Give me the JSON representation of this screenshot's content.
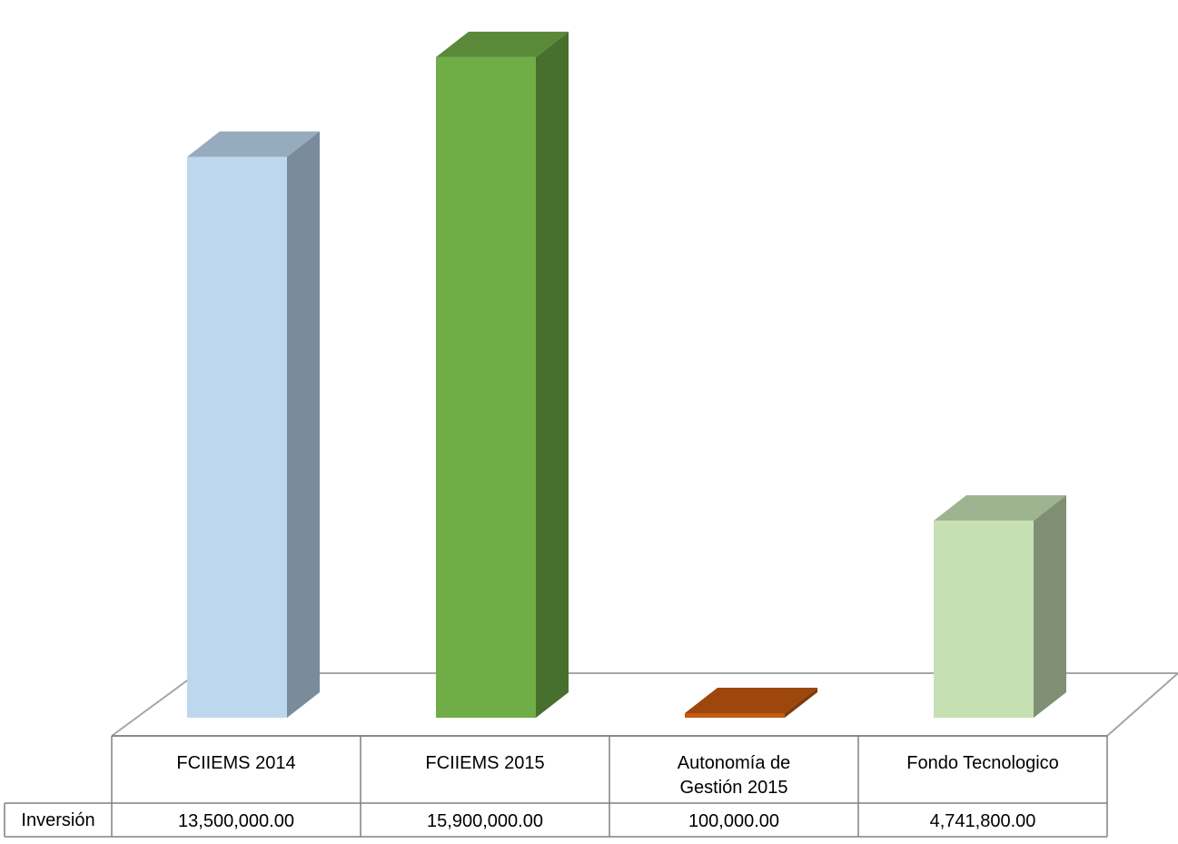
{
  "chart_data": {
    "type": "bar",
    "style": "3d-column-with-data-table",
    "title": "",
    "xlabel": "",
    "ylabel": "",
    "ylim": [
      0,
      16400000
    ],
    "grid": false,
    "legend": "none",
    "categories": [
      [
        "FCIIEMS 2014"
      ],
      [
        "FCIIEMS 2015"
      ],
      [
        "Autonomía de",
        "Gestión 2015"
      ],
      [
        "Fondo Tecnologico"
      ]
    ],
    "series": [
      {
        "name": "Inversión",
        "values": [
          13500000,
          15900000,
          100000,
          4741800
        ],
        "value_labels": [
          "13,500,000.00",
          "15,900,000.00",
          "100,000.00",
          "4,741,800.00"
        ]
      }
    ],
    "colors": [
      {
        "front": "#BDD7EE",
        "top": "#97ABBE",
        "side": "#7A8B9B"
      },
      {
        "front": "#70AD47",
        "top": "#5A8A39",
        "side": "#476F2D"
      },
      {
        "front": "#C55A11",
        "top": "#9D470D",
        "side": "#7F3A0B"
      },
      {
        "front": "#C6E0B4",
        "top": "#9EB390",
        "side": "#808F74"
      }
    ],
    "floor_color": "#A6A6A6",
    "table_border_color": "#808080"
  }
}
